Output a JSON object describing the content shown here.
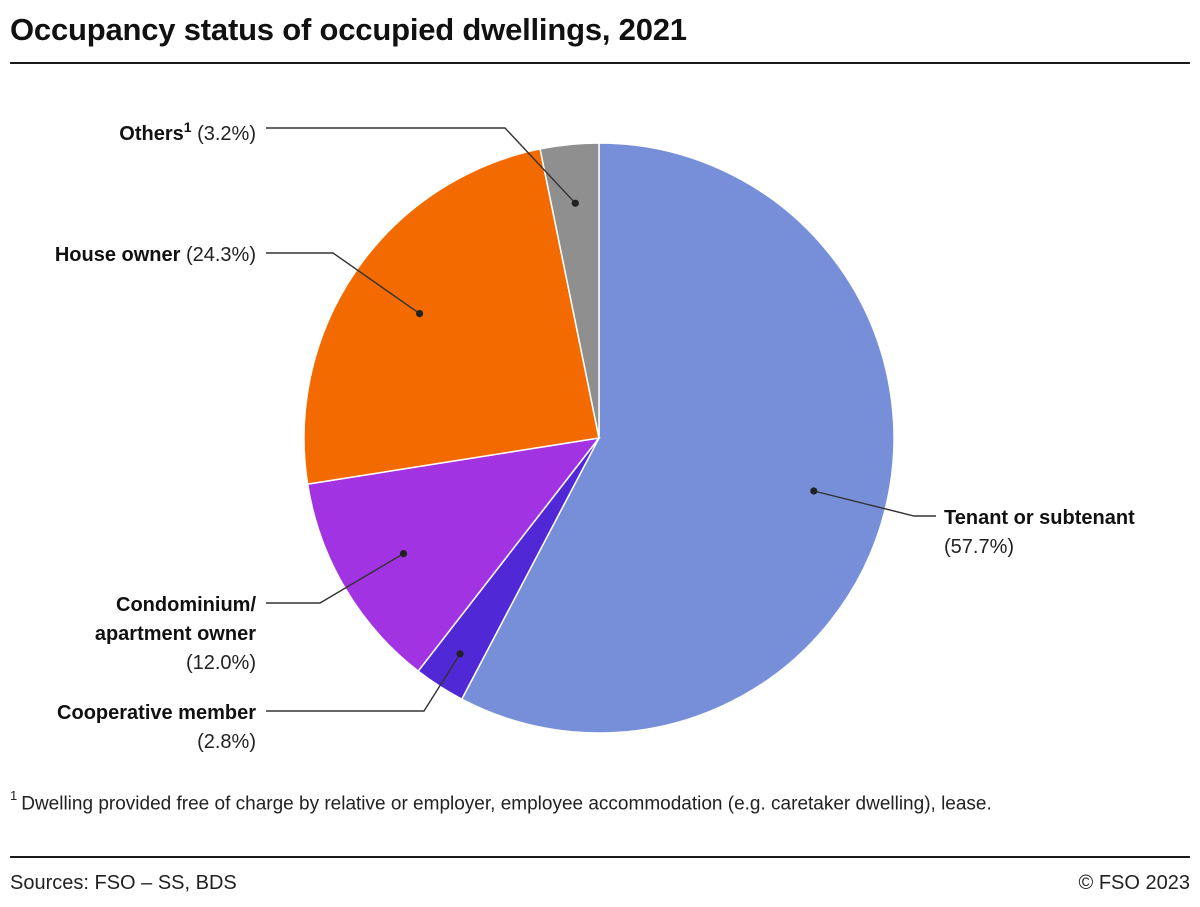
{
  "title": "Occupancy status of occupied dwellings, 2021",
  "colors": {
    "tenant": "#768fd8",
    "cooperative": "#5128d6",
    "condominium": "#a233e2",
    "house_owner": "#f36b00",
    "others": "#8f8f8f"
  },
  "chart_data": {
    "type": "pie",
    "title": "Occupancy status of occupied dwellings, 2021",
    "direction": "clockwise from top",
    "slices": [
      {
        "key": "tenant",
        "label_lines": [
          "Tenant or subtenant"
        ],
        "sup": "",
        "value": 57.7,
        "pct_label": "(57.7%)"
      },
      {
        "key": "cooperative",
        "label_lines": [
          "Cooperative member"
        ],
        "sup": "",
        "value": 2.8,
        "pct_label": "(2.8%)"
      },
      {
        "key": "condominium",
        "label_lines": [
          "Condominium/",
          "apartment owner"
        ],
        "sup": "",
        "value": 12.0,
        "pct_label": "(12.0%)"
      },
      {
        "key": "house_owner",
        "label_lines": [
          "House owner"
        ],
        "sup": "",
        "value": 24.3,
        "pct_label": "(24.3%)"
      },
      {
        "key": "others",
        "label_lines": [
          "Others"
        ],
        "sup": "1",
        "value": 3.2,
        "pct_label": "(3.2%)"
      }
    ]
  },
  "footnote": {
    "marker": "1",
    "text": "Dwelling provided free of charge by relative or employer, employee accommodation (e.g. caretaker dwelling), lease."
  },
  "sources": "Sources: FSO – SS, BDS",
  "copyright": "© FSO 2023"
}
